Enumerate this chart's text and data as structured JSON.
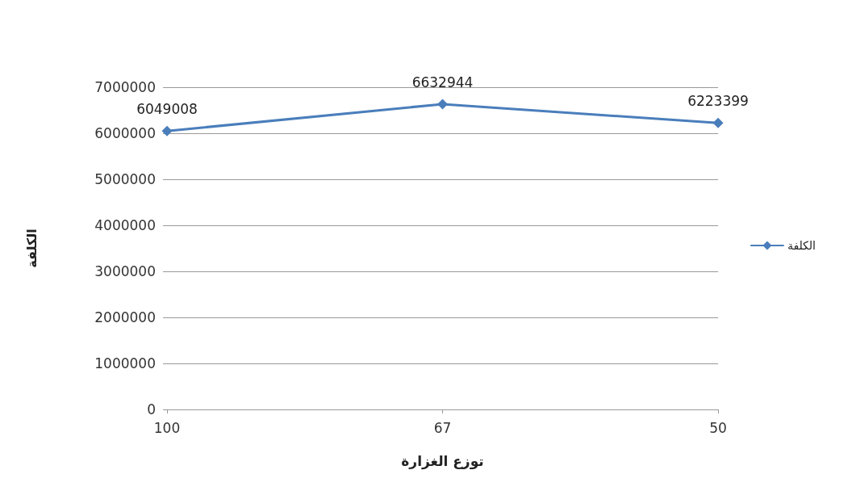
{
  "chart_data": {
    "type": "line",
    "xlabel": "توزع الغزارة",
    "ylabel": "الكلفة",
    "categories": [
      "100",
      "67",
      "50"
    ],
    "series": [
      {
        "name": "الكلفة",
        "color": "#4a7ebb",
        "values": [
          6049008,
          6632944,
          6223399
        ]
      }
    ],
    "ylim": [
      0,
      7000000
    ],
    "yticks": [
      0,
      1000000,
      2000000,
      3000000,
      4000000,
      5000000,
      6000000,
      7000000
    ],
    "grid": "y",
    "legend": "right",
    "marker": "diamond",
    "data_labels": true
  }
}
